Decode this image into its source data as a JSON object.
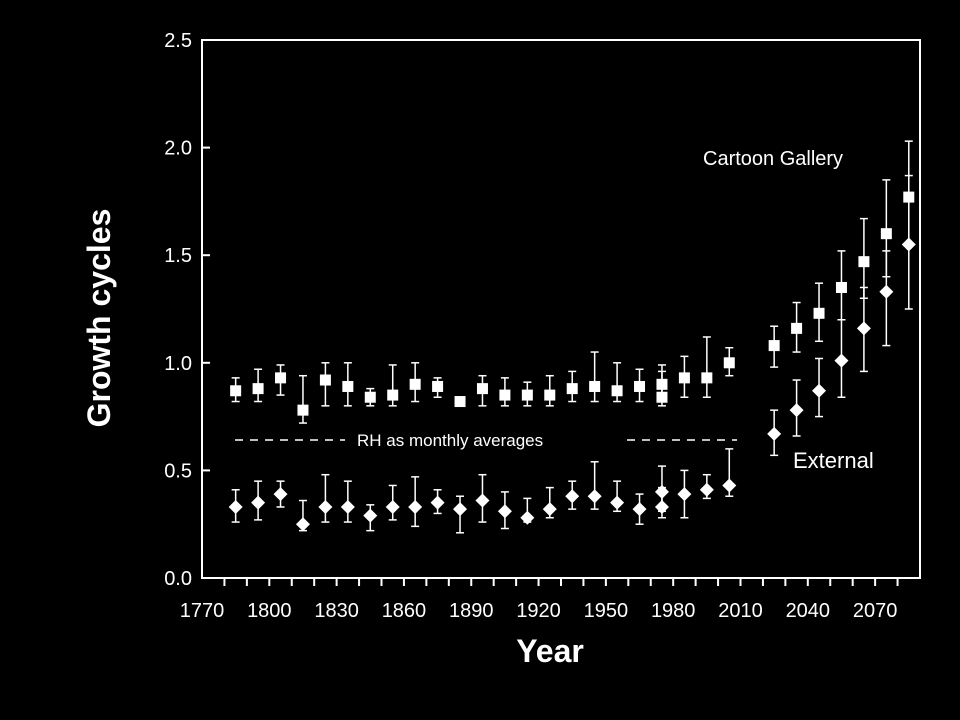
{
  "chart_data": {
    "type": "scatter",
    "xlabel": "Year",
    "ylabel": "Growth cycles",
    "xlim": [
      1770,
      2090
    ],
    "ylim": [
      0,
      2.5
    ],
    "x_ticks": [
      1770,
      1800,
      1830,
      1860,
      1890,
      1920,
      1950,
      1980,
      2010,
      2040,
      2070
    ],
    "y_ticks": [
      "0.0",
      "0.5",
      "1.0",
      "1.5",
      "2.0",
      "2.5"
    ],
    "grid": false,
    "legend": "none",
    "colors": {
      "background": "#000000",
      "foreground": "#ffffff"
    },
    "annotations": [
      {
        "text": "Cartoon Gallery"
      },
      {
        "text": "External"
      },
      {
        "text": "RH as monthly averages"
      }
    ],
    "series": [
      {
        "marker": "square",
        "x": [
          1785,
          1795,
          1805,
          1815,
          1825,
          1835,
          1845,
          1855,
          1865,
          1875,
          1885,
          1895,
          1905,
          1915,
          1925,
          1935,
          1945,
          1955,
          1965,
          1975,
          1975,
          1985,
          1995,
          2005,
          2025,
          2035,
          2045,
          2055,
          2065,
          2075,
          2085
        ],
        "y": [
          0.87,
          0.88,
          0.93,
          0.78,
          0.92,
          0.89,
          0.84,
          0.85,
          0.9,
          0.89,
          0.82,
          0.88,
          0.85,
          0.85,
          0.85,
          0.88,
          0.89,
          0.87,
          0.89,
          0.9,
          0.84,
          0.93,
          0.93,
          1.0,
          1.08,
          1.16,
          1.23,
          1.35,
          1.47,
          1.6,
          1.77
        ],
        "y_upper": [
          0.93,
          0.97,
          0.99,
          0.94,
          1.0,
          1.0,
          0.88,
          0.99,
          1.0,
          0.93,
          0.84,
          0.94,
          0.93,
          0.91,
          0.94,
          0.96,
          1.05,
          1.0,
          0.97,
          0.99,
          0.96,
          1.03,
          1.12,
          1.07,
          1.17,
          1.28,
          1.37,
          1.52,
          1.67,
          1.85,
          2.03
        ],
        "y_lower": [
          0.82,
          0.82,
          0.85,
          0.72,
          0.8,
          0.8,
          0.8,
          0.8,
          0.82,
          0.84,
          0.8,
          0.8,
          0.8,
          0.8,
          0.8,
          0.82,
          0.82,
          0.82,
          0.82,
          0.82,
          0.8,
          0.84,
          0.84,
          0.94,
          0.98,
          1.05,
          1.1,
          1.2,
          1.3,
          1.4,
          1.55
        ]
      },
      {
        "marker": "diamond",
        "x": [
          1785,
          1795,
          1805,
          1815,
          1825,
          1835,
          1845,
          1855,
          1865,
          1875,
          1885,
          1895,
          1905,
          1915,
          1925,
          1935,
          1945,
          1955,
          1965,
          1975,
          1975,
          1985,
          1995,
          2005,
          2025,
          2035,
          2045,
          2055,
          2065,
          2075,
          2085
        ],
        "y": [
          0.33,
          0.35,
          0.39,
          0.25,
          0.33,
          0.33,
          0.29,
          0.33,
          0.33,
          0.35,
          0.32,
          0.36,
          0.31,
          0.28,
          0.32,
          0.38,
          0.38,
          0.35,
          0.32,
          0.4,
          0.33,
          0.39,
          0.41,
          0.43,
          0.67,
          0.78,
          0.87,
          1.01,
          1.16,
          1.33,
          1.55
        ],
        "y_upper": [
          0.41,
          0.45,
          0.45,
          0.36,
          0.48,
          0.45,
          0.34,
          0.43,
          0.47,
          0.41,
          0.38,
          0.48,
          0.4,
          0.37,
          0.42,
          0.45,
          0.54,
          0.45,
          0.39,
          0.52,
          0.42,
          0.5,
          0.48,
          0.6,
          0.78,
          0.92,
          1.02,
          1.2,
          1.35,
          1.52,
          1.87
        ],
        "y_lower": [
          0.26,
          0.27,
          0.33,
          0.22,
          0.26,
          0.26,
          0.22,
          0.27,
          0.24,
          0.3,
          0.21,
          0.26,
          0.23,
          0.26,
          0.28,
          0.32,
          0.32,
          0.31,
          0.25,
          0.31,
          0.28,
          0.28,
          0.37,
          0.38,
          0.57,
          0.66,
          0.75,
          0.84,
          0.96,
          1.08,
          1.25
        ]
      }
    ]
  }
}
